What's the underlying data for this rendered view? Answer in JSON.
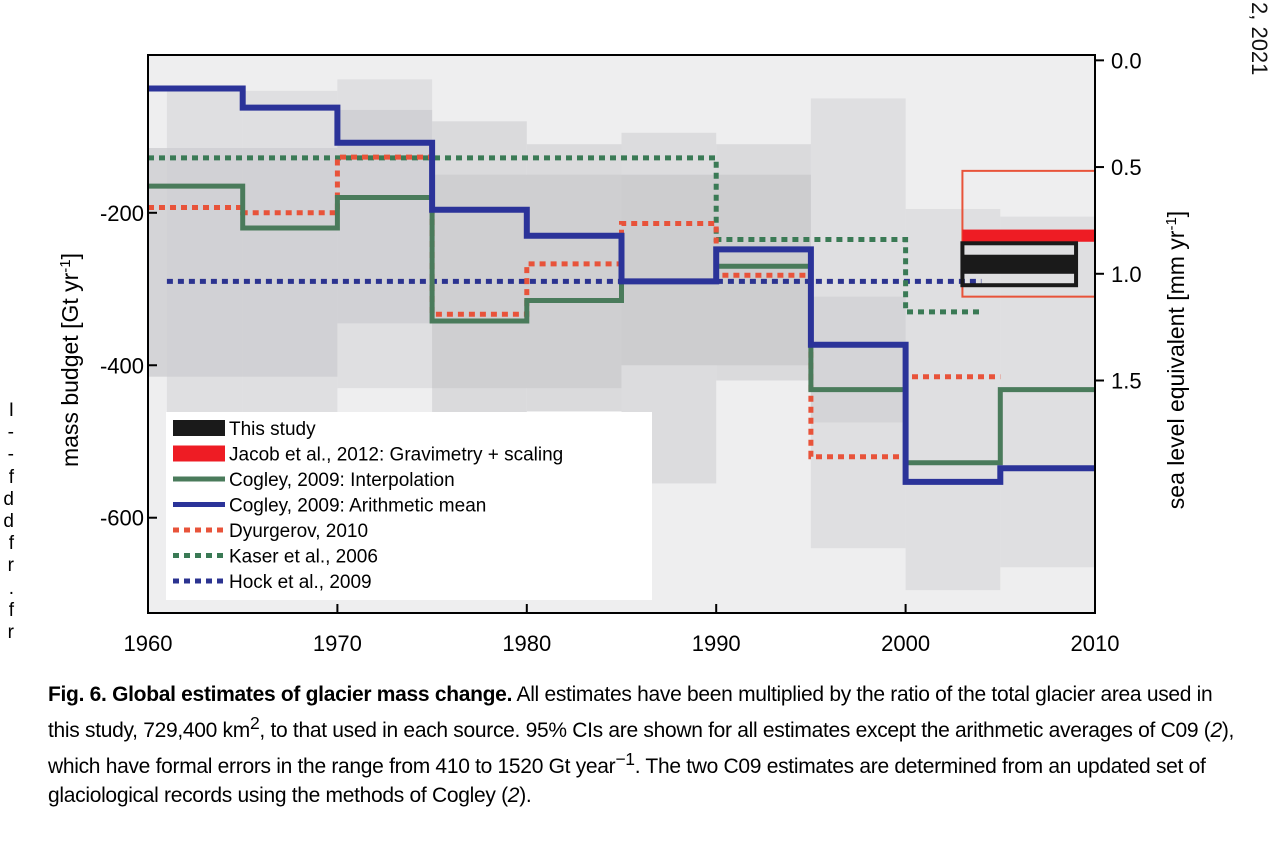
{
  "page": {
    "corner_text": "2, 2021",
    "margin_marks": [
      "I",
      "-",
      "-",
      "f",
      "d",
      "d",
      "f",
      "r",
      ".",
      "f",
      "r"
    ]
  },
  "caption": {
    "title": "Fig. 6. Global estimates of glacier mass change.",
    "text_1": " All estimates have been multiplied by the ratio of the total glacier area used in this study, 729,400 km",
    "sup_1": "2",
    "text_2": ", to that used in each source. 95% CIs are shown for all estimates except the arithmetic averages of C09 (",
    "ref_1": "2",
    "text_3": "), which have formal errors in the range from 410 to 1520 Gt year",
    "sup_2": "−1",
    "text_4": ". The two C09 estimates are determined from an updated set of glaciological records using the methods of Cogley (",
    "ref_2": "2",
    "text_5": ")."
  },
  "chart_data": {
    "type": "line",
    "xlim": [
      1960,
      2010
    ],
    "ylim": [
      -725,
      7
    ],
    "x_ticks": [
      "1960",
      "1970",
      "1980",
      "1990",
      "2000",
      "2010"
    ],
    "y_ticks": [
      {
        "value": -200,
        "label": "-200"
      },
      {
        "value": -400,
        "label": "-400"
      },
      {
        "value": -600,
        "label": "-600"
      }
    ],
    "y2_ticks": [
      {
        "value": 0.0,
        "label": "0.0"
      },
      {
        "value": 0.5,
        "label": "0.5"
      },
      {
        "value": 1.0,
        "label": "1.0"
      },
      {
        "value": 1.5,
        "label": "1.5"
      }
    ],
    "y2_per_mm": -280,
    "ylabel": "mass budget [Gt yr",
    "ylabel_sup": "-1",
    "ylabel_end": "]",
    "y2label": "sea level equivalent [mm yr",
    "y2label_sup": "-1",
    "y2label_end": "]",
    "legend_position": "lower-left",
    "ci_bands": [
      {
        "x0": 1960,
        "x1": 2010,
        "lo": -725,
        "hi": 7,
        "color": "#ebebec"
      },
      {
        "x0": 1961,
        "x1": 1965,
        "lo": -470,
        "hi": -40,
        "color": "#dcdcde"
      },
      {
        "x0": 1965,
        "x1": 1970,
        "lo": -470,
        "hi": -40,
        "color": "#dcdcde"
      },
      {
        "x0": 1970,
        "x1": 1975,
        "lo": -430,
        "hi": -25,
        "color": "#dcdcde"
      },
      {
        "x0": 1975,
        "x1": 1980,
        "lo": -470,
        "hi": -80,
        "color": "#d6d6d8"
      },
      {
        "x0": 1980,
        "x1": 1985,
        "lo": -460,
        "hi": -110,
        "color": "#d6d6d8"
      },
      {
        "x0": 1985,
        "x1": 1990,
        "lo": -555,
        "hi": -95,
        "color": "#d8d8da"
      },
      {
        "x0": 1990,
        "x1": 1995,
        "lo": -420,
        "hi": -110,
        "color": "#d6d6d8"
      },
      {
        "x0": 1995,
        "x1": 2000,
        "lo": -640,
        "hi": -50,
        "color": "#dcdcde"
      },
      {
        "x0": 2000,
        "x1": 2005,
        "lo": -695,
        "hi": -195,
        "color": "#dcdcde"
      },
      {
        "x0": 2005,
        "x1": 2010,
        "lo": -665,
        "hi": -205,
        "color": "#dcdcde"
      },
      {
        "x0": 1960,
        "x1": 1970,
        "lo": -415,
        "hi": -115,
        "color": "#cfcfd2"
      },
      {
        "x0": 1970,
        "x1": 1975,
        "lo": -345,
        "hi": -65,
        "color": "#cfcfd2"
      },
      {
        "x0": 1975,
        "x1": 1985,
        "lo": -430,
        "hi": -150,
        "color": "#cccccf"
      },
      {
        "x0": 1985,
        "x1": 1995,
        "lo": -400,
        "hi": -150,
        "color": "#cacacd"
      },
      {
        "x0": 1995,
        "x1": 2000,
        "lo": -475,
        "hi": -310,
        "color": "#d2d2d5"
      }
    ],
    "boxes": [
      {
        "name": "Jacob et al., 2012: Gravimetry + scaling",
        "x0": 2003,
        "x1": 2010,
        "lo": -310,
        "hi": -145,
        "color": "#e8533a",
        "fill": "none",
        "stroke_width": 2
      },
      {
        "name": "Jacob et al., 2012: Gravimetry + scaling",
        "x0": 2003,
        "x1": 2010,
        "lo": -238,
        "hi": -222,
        "color": "#ee1c24",
        "fill": "#ee1c24",
        "stroke_width": 0
      },
      {
        "name": "This study",
        "x0": 2003,
        "x1": 2009,
        "lo": -295,
        "hi": -240,
        "color": "#1a1a1a",
        "fill": "none",
        "stroke_width": 4
      },
      {
        "name": "This study",
        "x0": 2003,
        "x1": 2009,
        "lo": -280,
        "hi": -255,
        "color": "#1a1a1a",
        "fill": "#1a1a1a",
        "stroke_width": 0
      }
    ],
    "series": [
      {
        "name": "Hock et al., 2009",
        "color": "#2b3390",
        "dash": "6 5",
        "width": 5,
        "x": [
          1961,
          2004
        ],
        "y": [
          -290,
          -290
        ]
      },
      {
        "name": "Kaser et al., 2006",
        "color": "#3a7a55",
        "dash": "6 5",
        "width": 5,
        "x": [
          1960,
          1990,
          1990,
          2000,
          2000,
          2004
        ],
        "y": [
          -128,
          -128,
          -235,
          -235,
          -330,
          -330
        ]
      },
      {
        "name": "Dyurgerov, 2010",
        "color": "#e8533a",
        "dash": "6 5",
        "width": 5,
        "x": [
          1960,
          1965,
          1965,
          1970,
          1970,
          1975,
          1975,
          1980,
          1980,
          1985,
          1985,
          1990,
          1990,
          1995,
          1995,
          2000,
          2000,
          2005
        ],
        "y": [
          -193,
          -193,
          -200,
          -200,
          -127,
          -127,
          -333,
          -333,
          -267,
          -267,
          -214,
          -214,
          -282,
          -282,
          -520,
          -520,
          -415,
          -415
        ]
      },
      {
        "name": "Cogley, 2009: Interpolation",
        "color": "#4a7b5b",
        "dash": "",
        "width": 5,
        "x": [
          1960,
          1965,
          1965,
          1970,
          1970,
          1975,
          1975,
          1980,
          1980,
          1985,
          1985,
          1990,
          1990,
          1995,
          1995,
          2000,
          2000,
          2005,
          2005,
          2010
        ],
        "y": [
          -165,
          -165,
          -220,
          -220,
          -180,
          -180,
          -342,
          -342,
          -315,
          -315,
          -290,
          -290,
          -270,
          -270,
          -432,
          -432,
          -528,
          -528,
          -432,
          -432
        ]
      },
      {
        "name": "Cogley, 2009: Arithmetic mean",
        "color": "#2b3399",
        "dash": "",
        "width": 6,
        "x": [
          1960,
          1965,
          1965,
          1970,
          1970,
          1975,
          1975,
          1980,
          1980,
          1985,
          1985,
          1990,
          1990,
          1995,
          1995,
          2000,
          2000,
          2005,
          2005,
          2010
        ],
        "y": [
          -37,
          -37,
          -62,
          -62,
          -108,
          -108,
          -196,
          -196,
          -230,
          -230,
          -290,
          -290,
          -248,
          -248,
          -373,
          -373,
          -553,
          -553,
          -535,
          -535
        ]
      }
    ],
    "legend": [
      {
        "label": "This study",
        "color": "#1a1a1a",
        "style": "bar"
      },
      {
        "label": "Jacob et al., 2012: Gravimetry + scaling",
        "color": "#ee1c24",
        "style": "bar"
      },
      {
        "label": "Cogley, 2009: Interpolation",
        "color": "#4a7b5b",
        "style": "solid"
      },
      {
        "label": "Cogley, 2009: Arithmetic mean",
        "color": "#2b3399",
        "style": "solid"
      },
      {
        "label": "Dyurgerov, 2010",
        "color": "#e8533a",
        "style": "dotted"
      },
      {
        "label": "Kaser et al., 2006",
        "color": "#3a7a55",
        "style": "dotted"
      },
      {
        "label": "Hock et al., 2009",
        "color": "#2b3390",
        "style": "dotted"
      }
    ]
  }
}
